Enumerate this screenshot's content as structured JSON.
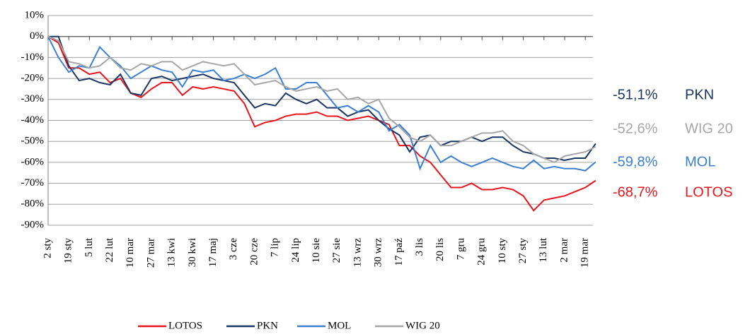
{
  "chart_data": {
    "type": "line",
    "categories": [
      "2 sty",
      null,
      "19 sty",
      null,
      "5 lut",
      null,
      "22 lut",
      null,
      "10 mar",
      null,
      "27 mar",
      null,
      "13 kwi",
      null,
      "30 kwi",
      null,
      "17 maj",
      null,
      "3 cze",
      null,
      "20 cze",
      null,
      "7 lip",
      null,
      "24 lip",
      null,
      "10 sie",
      null,
      "27 sie",
      null,
      "13 wrz",
      null,
      "30 wrz",
      null,
      "17 paź",
      null,
      "3 lis",
      null,
      "20 lis",
      null,
      "7 gru",
      null,
      "24 gru",
      null,
      "10 sty",
      null,
      "27 sty",
      null,
      "13 lut",
      null,
      "2 mar",
      null,
      "19 mar",
      null
    ],
    "series": [
      {
        "name": "LOTOS",
        "color": "#e8141b",
        "values": [
          0,
          -3,
          -15,
          -15,
          -18,
          -17,
          -22,
          -20,
          -27,
          -29,
          -25,
          -22,
          -22,
          -28,
          -24,
          -25,
          -24,
          -25,
          -26,
          -32,
          -43,
          -41,
          -40,
          -38,
          -37,
          -37,
          -36,
          -38,
          -38,
          -40,
          -39,
          -38,
          -40,
          -42,
          -52,
          -52,
          -57,
          -60,
          -66,
          -72,
          -72,
          -70,
          -73,
          -73,
          -72,
          -73,
          -76,
          -83,
          -78,
          -77,
          -76,
          -74,
          -72,
          -68.7
        ]
      },
      {
        "name": "PKN",
        "color": "#1a3564",
        "values": [
          0,
          0,
          -14,
          -21,
          -20,
          -22,
          -23,
          -18,
          -27,
          -28,
          -20,
          -19,
          -21,
          -20,
          -19,
          -18,
          -20,
          -21,
          -22,
          -28,
          -34,
          -32,
          -33,
          -27,
          -30,
          -32,
          -30,
          -34,
          -34,
          -38,
          -36,
          -35,
          -40,
          -44,
          -47,
          -55,
          -48,
          -47,
          -52,
          -50,
          -50,
          -48,
          -50,
          -48,
          -48,
          -52,
          -55,
          -56,
          -58,
          -58,
          -59,
          -58,
          -58,
          -51.1
        ]
      },
      {
        "name": "MOL",
        "color": "#3b7fd0",
        "values": [
          0,
          -10,
          -17,
          -14,
          -15,
          -5,
          -10,
          -14,
          -20,
          -17,
          -14,
          -16,
          -17,
          -24,
          -16,
          -17,
          -16,
          -21,
          -20,
          -18,
          -20,
          -18,
          -15,
          -25,
          -25,
          -22,
          -22,
          -28,
          -34,
          -33,
          -36,
          -33,
          -36,
          -45,
          -42,
          -47,
          -63,
          -52,
          -60,
          -57,
          -60,
          -62,
          -60,
          -58,
          -60,
          -62,
          -63,
          -59,
          -63,
          -62,
          -63,
          -63,
          -64,
          -59.8
        ]
      },
      {
        "name": "WIG 20",
        "color": "#a6a6a6",
        "values": [
          0,
          -2,
          -12,
          -13,
          -15,
          -14,
          -10,
          -15,
          -16,
          -13,
          -14,
          -12,
          -12,
          -16,
          -14,
          -12,
          -13,
          -14,
          -13,
          -18,
          -23,
          -22,
          -21,
          -24,
          -26,
          -25,
          -24,
          -26,
          -25,
          -30,
          -29,
          -32,
          -30,
          -39,
          -43,
          -48,
          -50,
          -47,
          -52,
          -52,
          -50,
          -48,
          -46,
          -46,
          -45,
          -50,
          -52,
          -56,
          -58,
          -60,
          -57,
          -56,
          -55,
          -52.6
        ]
      }
    ],
    "ylim": [
      -90,
      10
    ],
    "yticks": [
      {
        "value": 10,
        "label": "10%"
      },
      {
        "value": 0,
        "label": "0%"
      },
      {
        "value": -10,
        "label": "-10%"
      },
      {
        "value": -20,
        "label": "-20%"
      },
      {
        "value": -30,
        "label": "-30%"
      },
      {
        "value": -40,
        "label": "-40%"
      },
      {
        "value": -50,
        "label": "-50%"
      },
      {
        "value": -60,
        "label": "-60%"
      },
      {
        "value": -70,
        "label": "-70%"
      },
      {
        "value": -80,
        "label": "-80%"
      },
      {
        "value": -90,
        "label": "-90%"
      }
    ],
    "grid": true,
    "annotations": [
      {
        "value": "-51,1%",
        "name": "PKN",
        "color": "#1a3564"
      },
      {
        "value": "-52,6%",
        "name": "WIG 20",
        "color": "#a6a6a6"
      },
      {
        "value": "-59,8%",
        "name": "MOL",
        "color": "#3b7fd0"
      },
      {
        "value": "-68,7%",
        "name": "LOTOS",
        "color": "#e8141b"
      }
    ],
    "legend": "bottom"
  }
}
